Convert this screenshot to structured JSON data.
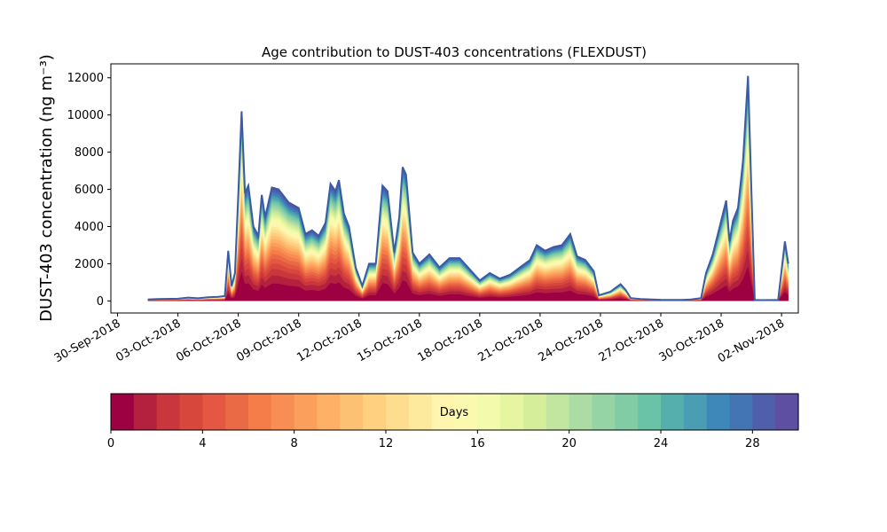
{
  "chart_data": {
    "type": "area",
    "title": "Age contribution to DUST-403 concentrations (FLEXDUST)",
    "ylabel": "DUST-403 concentration (ng m⁻³)",
    "xlabel": "",
    "xlim": [
      "2018-09-29T16:00",
      "2018-11-02T20:00"
    ],
    "ylim": [
      -650,
      12750
    ],
    "y_ticks": [
      0,
      2000,
      4000,
      6000,
      8000,
      10000,
      12000
    ],
    "x_ticks": [
      {
        "date": "2018-09-30",
        "label": "30-Sep-2018"
      },
      {
        "date": "2018-10-03",
        "label": "03-Oct-2018"
      },
      {
        "date": "2018-10-06",
        "label": "06-Oct-2018"
      },
      {
        "date": "2018-10-09",
        "label": "09-Oct-2018"
      },
      {
        "date": "2018-10-12",
        "label": "12-Oct-2018"
      },
      {
        "date": "2018-10-15",
        "label": "15-Oct-2018"
      },
      {
        "date": "2018-10-18",
        "label": "18-Oct-2018"
      },
      {
        "date": "2018-10-21",
        "label": "21-Oct-2018"
      },
      {
        "date": "2018-10-24",
        "label": "24-Oct-2018"
      },
      {
        "date": "2018-10-27",
        "label": "27-Oct-2018"
      },
      {
        "date": "2018-10-30",
        "label": "30-Oct-2018"
      },
      {
        "date": "2018-11-02",
        "label": "02-Nov-2018"
      }
    ],
    "grid": false,
    "total_series": [
      [
        "2018-10-01T12:00",
        80
      ],
      [
        "2018-10-02T00:00",
        100
      ],
      [
        "2018-10-03T00:00",
        120
      ],
      [
        "2018-10-03T12:00",
        180
      ],
      [
        "2018-10-04T00:00",
        140
      ],
      [
        "2018-10-04T12:00",
        200
      ],
      [
        "2018-10-05T00:00",
        220
      ],
      [
        "2018-10-05T08:00",
        260
      ],
      [
        "2018-10-05T12:00",
        2700
      ],
      [
        "2018-10-05T16:00",
        800
      ],
      [
        "2018-10-05T20:00",
        1500
      ],
      [
        "2018-10-06T00:00",
        5800
      ],
      [
        "2018-10-06T04:00",
        10200
      ],
      [
        "2018-10-06T08:00",
        5800
      ],
      [
        "2018-10-06T12:00",
        6200
      ],
      [
        "2018-10-06T18:00",
        4000
      ],
      [
        "2018-10-07T00:00",
        3500
      ],
      [
        "2018-10-07T04:00",
        5700
      ],
      [
        "2018-10-07T08:00",
        4500
      ],
      [
        "2018-10-07T16:00",
        6100
      ],
      [
        "2018-10-08T00:00",
        6000
      ],
      [
        "2018-10-08T12:00",
        5300
      ],
      [
        "2018-10-09T00:00",
        5000
      ],
      [
        "2018-10-09T08:00",
        3600
      ],
      [
        "2018-10-09T16:00",
        3800
      ],
      [
        "2018-10-10T00:00",
        3500
      ],
      [
        "2018-10-10T08:00",
        4200
      ],
      [
        "2018-10-10T14:00",
        6300
      ],
      [
        "2018-10-10T20:00",
        5900
      ],
      [
        "2018-10-11T00:00",
        6500
      ],
      [
        "2018-10-11T06:00",
        4700
      ],
      [
        "2018-10-11T12:00",
        4000
      ],
      [
        "2018-10-11T20:00",
        1800
      ],
      [
        "2018-10-12T04:00",
        800
      ],
      [
        "2018-10-12T12:00",
        2000
      ],
      [
        "2018-10-12T20:00",
        2000
      ],
      [
        "2018-10-13T04:00",
        6200
      ],
      [
        "2018-10-13T10:00",
        5900
      ],
      [
        "2018-10-13T18:00",
        2600
      ],
      [
        "2018-10-14T00:00",
        4500
      ],
      [
        "2018-10-14T04:00",
        7200
      ],
      [
        "2018-10-14T08:00",
        6800
      ],
      [
        "2018-10-14T16:00",
        2600
      ],
      [
        "2018-10-15T00:00",
        2000
      ],
      [
        "2018-10-15T12:00",
        2500
      ],
      [
        "2018-10-16T00:00",
        1800
      ],
      [
        "2018-10-16T12:00",
        2300
      ],
      [
        "2018-10-17T00:00",
        2300
      ],
      [
        "2018-10-17T12:00",
        1700
      ],
      [
        "2018-10-18T00:00",
        1100
      ],
      [
        "2018-10-18T12:00",
        1500
      ],
      [
        "2018-10-19T00:00",
        1200
      ],
      [
        "2018-10-19T12:00",
        1400
      ],
      [
        "2018-10-20T00:00",
        1800
      ],
      [
        "2018-10-20T12:00",
        2200
      ],
      [
        "2018-10-20T20:00",
        3000
      ],
      [
        "2018-10-21T06:00",
        2700
      ],
      [
        "2018-10-21T16:00",
        2900
      ],
      [
        "2018-10-22T02:00",
        3000
      ],
      [
        "2018-10-22T12:00",
        3600
      ],
      [
        "2018-10-22T20:00",
        2400
      ],
      [
        "2018-10-23T06:00",
        2200
      ],
      [
        "2018-10-23T16:00",
        1600
      ],
      [
        "2018-10-23T22:00",
        300
      ],
      [
        "2018-10-24T12:00",
        500
      ],
      [
        "2018-10-25T00:00",
        900
      ],
      [
        "2018-10-25T06:00",
        600
      ],
      [
        "2018-10-25T12:00",
        150
      ],
      [
        "2018-10-26T00:00",
        100
      ],
      [
        "2018-10-27T00:00",
        60
      ],
      [
        "2018-10-28T00:00",
        50
      ],
      [
        "2018-10-28T12:00",
        80
      ],
      [
        "2018-10-29T00:00",
        150
      ],
      [
        "2018-10-29T06:00",
        1500
      ],
      [
        "2018-10-29T14:00",
        2500
      ],
      [
        "2018-10-30T00:00",
        4300
      ],
      [
        "2018-10-30T06:00",
        5400
      ],
      [
        "2018-10-30T10:00",
        3200
      ],
      [
        "2018-10-30T14:00",
        4300
      ],
      [
        "2018-10-30T20:00",
        5000
      ],
      [
        "2018-10-31T02:00",
        7500
      ],
      [
        "2018-10-31T08:00",
        12100
      ],
      [
        "2018-10-31T12:00",
        6000
      ],
      [
        "2018-10-31T16:00",
        50
      ],
      [
        "2018-11-01T00:00",
        40
      ],
      [
        "2018-11-01T20:00",
        50
      ],
      [
        "2018-11-02T04:00",
        3200
      ],
      [
        "2018-11-02T08:00",
        2000
      ]
    ],
    "colorbar": {
      "label": "Days",
      "min": 0,
      "max": 30,
      "ticks": [
        0,
        4,
        8,
        12,
        16,
        20,
        24,
        28
      ],
      "colors": [
        "#9e0142",
        "#b4213f",
        "#c9373c",
        "#d8473c",
        "#e45742",
        "#ea6a46",
        "#f47d4a",
        "#f88e53",
        "#fb9f5c",
        "#fdb066",
        "#fdc173",
        "#fed080",
        "#fedd8e",
        "#feea9d",
        "#fff5ae",
        "#fbf9b0",
        "#f3faac",
        "#e6f5a0",
        "#d5ee99",
        "#c2e6a0",
        "#abdca4",
        "#95d4a4",
        "#81cba5",
        "#6bc3a7",
        "#55afad",
        "#4a9db2",
        "#3d88b9",
        "#4375b4",
        "#505fab",
        "#5e4fa2"
      ]
    },
    "outline_color": "#3a5ba6"
  }
}
